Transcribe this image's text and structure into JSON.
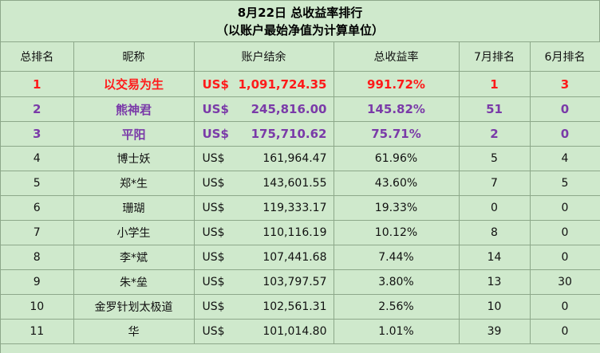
{
  "title": {
    "line1": "8月22日 总收益率排行",
    "line2": "（以账户最始净值为计算单位）"
  },
  "columns": [
    "总排名",
    "昵称",
    "账户结余",
    "总收益率",
    "7月排名",
    "6月排名"
  ],
  "colors": {
    "background": "#cfe9cc",
    "grid": "#8da88a",
    "rank1": "#ff1a1a",
    "rank2_3": "#7a3aa8"
  },
  "rows": [
    {
      "rank": "1",
      "name": "以交易为生",
      "currency": "US$",
      "balance": "1,091,724.35",
      "return": "991.72%",
      "july": "1",
      "june": "3"
    },
    {
      "rank": "2",
      "name": "熊神君",
      "currency": "US$",
      "balance": "245,816.00",
      "return": "145.82%",
      "july": "51",
      "june": "0"
    },
    {
      "rank": "3",
      "name": "平阳",
      "currency": "US$",
      "balance": "175,710.62",
      "return": "75.71%",
      "july": "2",
      "june": "0"
    },
    {
      "rank": "4",
      "name": "博士妖",
      "currency": "US$",
      "balance": "161,964.47",
      "return": "61.96%",
      "july": "5",
      "june": "4"
    },
    {
      "rank": "5",
      "name": "郑*生",
      "currency": "US$",
      "balance": "143,601.55",
      "return": "43.60%",
      "july": "7",
      "june": "5"
    },
    {
      "rank": "6",
      "name": "珊瑚",
      "currency": "US$",
      "balance": "119,333.17",
      "return": "19.33%",
      "july": "0",
      "june": "0"
    },
    {
      "rank": "7",
      "name": "小学生",
      "currency": "US$",
      "balance": "110,116.19",
      "return": "10.12%",
      "july": "8",
      "june": "0"
    },
    {
      "rank": "8",
      "name": "李*斌",
      "currency": "US$",
      "balance": "107,441.68",
      "return": "7.44%",
      "july": "14",
      "june": "0"
    },
    {
      "rank": "9",
      "name": "朱*垒",
      "currency": "US$",
      "balance": "103,797.57",
      "return": "3.80%",
      "july": "13",
      "june": "30"
    },
    {
      "rank": "10",
      "name": "金罗针划太极道",
      "currency": "US$",
      "balance": "102,561.31",
      "return": "2.56%",
      "july": "10",
      "june": "0"
    },
    {
      "rank": "11",
      "name": "华",
      "currency": "US$",
      "balance": "101,014.80",
      "return": "1.01%",
      "july": "39",
      "june": "0"
    }
  ]
}
